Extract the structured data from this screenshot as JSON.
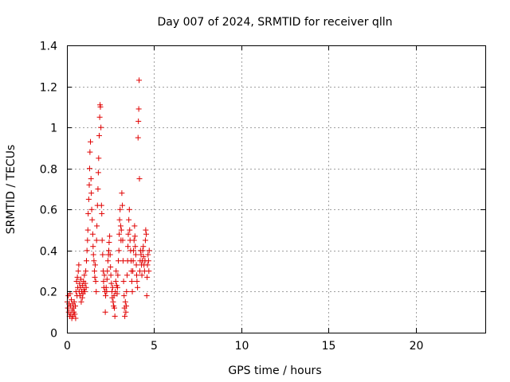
{
  "chart_data": {
    "type": "scatter",
    "title": "Day 007 of 2024, SRMTID for receiver qlln",
    "xlabel": "GPS time / hours",
    "ylabel": "SRMTID / TECUs",
    "xlim": [
      0,
      24
    ],
    "ylim": [
      0,
      1.4
    ],
    "xticks": [
      0,
      5,
      10,
      15,
      20
    ],
    "yticks": [
      0,
      0.2,
      0.4,
      0.6,
      0.8,
      1,
      1.2,
      1.4
    ],
    "grid": true,
    "marker": "+",
    "color": "#e00000",
    "series": [
      {
        "name": "SRMTID",
        "points": [
          [
            0.02,
            0.15
          ],
          [
            0.05,
            0.12
          ],
          [
            0.08,
            0.18
          ],
          [
            0.1,
            0.1
          ],
          [
            0.12,
            0.14
          ],
          [
            0.15,
            0.08
          ],
          [
            0.18,
            0.19
          ],
          [
            0.2,
            0.13
          ],
          [
            0.22,
            0.09
          ],
          [
            0.25,
            0.16
          ],
          [
            0.28,
            0.07
          ],
          [
            0.3,
            0.11
          ],
          [
            0.33,
            0.14
          ],
          [
            0.35,
            0.08
          ],
          [
            0.38,
            0.12
          ],
          [
            0.4,
            0.1
          ],
          [
            0.42,
            0.15
          ],
          [
            0.45,
            0.09
          ],
          [
            0.48,
            0.13
          ],
          [
            0.5,
            0.07
          ],
          [
            0.52,
            0.2
          ],
          [
            0.55,
            0.25
          ],
          [
            0.58,
            0.18
          ],
          [
            0.6,
            0.27
          ],
          [
            0.62,
            0.22
          ],
          [
            0.65,
            0.3
          ],
          [
            0.68,
            0.33
          ],
          [
            0.7,
            0.2
          ],
          [
            0.72,
            0.24
          ],
          [
            0.75,
            0.18
          ],
          [
            0.78,
            0.22
          ],
          [
            0.8,
            0.26
          ],
          [
            0.82,
            0.15
          ],
          [
            0.85,
            0.2
          ],
          [
            0.88,
            0.17
          ],
          [
            0.9,
            0.23
          ],
          [
            0.92,
            0.19
          ],
          [
            0.95,
            0.25
          ],
          [
            0.98,
            0.21
          ],
          [
            1.0,
            0.28
          ],
          [
            1.02,
            0.2
          ],
          [
            1.05,
            0.24
          ],
          [
            1.08,
            0.3
          ],
          [
            1.1,
            0.22
          ],
          [
            1.12,
            0.35
          ],
          [
            1.15,
            0.4
          ],
          [
            1.18,
            0.45
          ],
          [
            1.2,
            0.5
          ],
          [
            1.22,
            0.58
          ],
          [
            1.25,
            0.65
          ],
          [
            1.28,
            0.72
          ],
          [
            1.3,
            0.8
          ],
          [
            1.32,
            0.88
          ],
          [
            1.35,
            0.93
          ],
          [
            1.38,
            0.75
          ],
          [
            1.4,
            0.68
          ],
          [
            1.42,
            0.6
          ],
          [
            1.45,
            0.55
          ],
          [
            1.48,
            0.48
          ],
          [
            1.5,
            0.42
          ],
          [
            1.52,
            0.38
          ],
          [
            1.55,
            0.35
          ],
          [
            1.58,
            0.3
          ],
          [
            1.6,
            0.27
          ],
          [
            1.62,
            0.33
          ],
          [
            1.65,
            0.25
          ],
          [
            1.68,
            0.2
          ],
          [
            1.7,
            0.45
          ],
          [
            1.72,
            0.52
          ],
          [
            1.75,
            0.62
          ],
          [
            1.78,
            0.7
          ],
          [
            1.8,
            0.78
          ],
          [
            1.82,
            0.85
          ],
          [
            1.85,
            0.96
          ],
          [
            1.88,
            1.05
          ],
          [
            1.9,
            1.11
          ],
          [
            1.92,
            1.1
          ],
          [
            1.95,
            1.0
          ],
          [
            1.98,
            0.62
          ],
          [
            2.0,
            0.58
          ],
          [
            2.02,
            0.45
          ],
          [
            2.05,
            0.38
          ],
          [
            2.08,
            0.3
          ],
          [
            2.1,
            0.25
          ],
          [
            2.12,
            0.22
          ],
          [
            2.15,
            0.28
          ],
          [
            2.18,
            0.2
          ],
          [
            2.2,
            0.1
          ],
          [
            2.22,
            0.18
          ],
          [
            2.25,
            0.22
          ],
          [
            2.28,
            0.2
          ],
          [
            2.3,
            0.26
          ],
          [
            2.32,
            0.3
          ],
          [
            2.35,
            0.35
          ],
          [
            2.38,
            0.38
          ],
          [
            2.4,
            0.4
          ],
          [
            2.42,
            0.44
          ],
          [
            2.45,
            0.47
          ],
          [
            2.48,
            0.38
          ],
          [
            2.5,
            0.32
          ],
          [
            2.52,
            0.28
          ],
          [
            2.55,
            0.24
          ],
          [
            2.58,
            0.2
          ],
          [
            2.6,
            0.17
          ],
          [
            2.62,
            0.22
          ],
          [
            2.65,
            0.15
          ],
          [
            2.68,
            0.13
          ],
          [
            2.7,
            0.18
          ],
          [
            2.72,
            0.12
          ],
          [
            2.75,
            0.08
          ],
          [
            2.78,
            0.2
          ],
          [
            2.8,
            0.25
          ],
          [
            2.82,
            0.3
          ],
          [
            2.85,
            0.23
          ],
          [
            2.88,
            0.19
          ],
          [
            2.9,
            0.22
          ],
          [
            2.92,
            0.28
          ],
          [
            2.95,
            0.35
          ],
          [
            2.98,
            0.4
          ],
          [
            3.0,
            0.48
          ],
          [
            3.02,
            0.55
          ],
          [
            3.05,
            0.6
          ],
          [
            3.08,
            0.52
          ],
          [
            3.1,
            0.45
          ],
          [
            3.12,
            0.5
          ],
          [
            3.15,
            0.68
          ],
          [
            3.18,
            0.62
          ],
          [
            3.2,
            0.45
          ],
          [
            3.22,
            0.35
          ],
          [
            3.25,
            0.25
          ],
          [
            3.28,
            0.18
          ],
          [
            3.3,
            0.12
          ],
          [
            3.32,
            0.08
          ],
          [
            3.35,
            0.15
          ],
          [
            3.38,
            0.1
          ],
          [
            3.4,
            0.13
          ],
          [
            3.42,
            0.2
          ],
          [
            3.45,
            0.28
          ],
          [
            3.48,
            0.35
          ],
          [
            3.5,
            0.42
          ],
          [
            3.52,
            0.48
          ],
          [
            3.55,
            0.55
          ],
          [
            3.58,
            0.6
          ],
          [
            3.6,
            0.5
          ],
          [
            3.62,
            0.45
          ],
          [
            3.65,
            0.4
          ],
          [
            3.68,
            0.35
          ],
          [
            3.7,
            0.3
          ],
          [
            3.72,
            0.25
          ],
          [
            3.75,
            0.2
          ],
          [
            3.78,
            0.3
          ],
          [
            3.8,
            0.35
          ],
          [
            3.82,
            0.4
          ],
          [
            3.85,
            0.45
          ],
          [
            3.88,
            0.52
          ],
          [
            3.9,
            0.47
          ],
          [
            3.92,
            0.42
          ],
          [
            3.95,
            0.38
          ],
          [
            3.98,
            0.33
          ],
          [
            4.0,
            0.28
          ],
          [
            4.02,
            0.25
          ],
          [
            4.05,
            0.22
          ],
          [
            4.08,
            0.95
          ],
          [
            4.1,
            1.03
          ],
          [
            4.12,
            1.09
          ],
          [
            4.14,
            1.23
          ],
          [
            4.16,
            0.75
          ],
          [
            4.18,
            0.3
          ],
          [
            4.2,
            0.35
          ],
          [
            4.22,
            0.4
          ],
          [
            4.25,
            0.38
          ],
          [
            4.28,
            0.33
          ],
          [
            4.3,
            0.28
          ],
          [
            4.32,
            0.35
          ],
          [
            4.35,
            0.4
          ],
          [
            4.38,
            0.42
          ],
          [
            4.4,
            0.37
          ],
          [
            4.42,
            0.33
          ],
          [
            4.45,
            0.3
          ],
          [
            4.48,
            0.35
          ],
          [
            4.5,
            0.45
          ],
          [
            4.52,
            0.5
          ],
          [
            4.55,
            0.48
          ],
          [
            4.58,
            0.18
          ],
          [
            4.6,
            0.27
          ],
          [
            4.62,
            0.33
          ],
          [
            4.65,
            0.38
          ],
          [
            4.68,
            0.35
          ],
          [
            4.7,
            0.3
          ],
          [
            4.72,
            0.4
          ]
        ]
      }
    ]
  }
}
